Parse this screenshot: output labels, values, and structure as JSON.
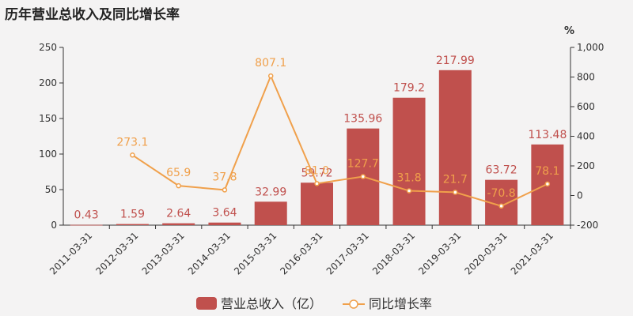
{
  "title": "历年营业总收入及同比增长率",
  "colors": {
    "bar": "#c0504d",
    "line": "#f0a04b",
    "background": "#f4f3f3"
  },
  "chart_data": {
    "type": "bar+line",
    "title": "历年营业总收入及同比增长率",
    "categories": [
      "2011-03-31",
      "2012-03-31",
      "2013-03-31",
      "2014-03-31",
      "2015-03-31",
      "2016-03-31",
      "2017-03-31",
      "2018-03-31",
      "2019-03-31",
      "2020-03-31",
      "2021-03-31"
    ],
    "series": [
      {
        "name": "营业总收入（亿）",
        "type": "bar",
        "axis": "left",
        "values": [
          0.43,
          1.59,
          2.64,
          3.64,
          32.99,
          59.72,
          135.96,
          179.2,
          217.99,
          63.72,
          113.48
        ],
        "labels": [
          "0.43",
          "1.59",
          "2.64",
          "3.64",
          "32.99",
          "59.72",
          "135.96",
          "179.2",
          "217.99",
          "63.72",
          "113.48"
        ]
      },
      {
        "name": "同比增长率",
        "type": "line",
        "axis": "right",
        "values": [
          null,
          273.1,
          65.9,
          37.8,
          807.1,
          81.0,
          127.7,
          31.8,
          21.7,
          -70.8,
          78.1
        ],
        "labels": [
          "",
          "273.1",
          "65.9",
          "37.8",
          "807.1",
          "81.0",
          "127.7",
          "31.8",
          "21.7",
          "-70.8",
          "78.1"
        ]
      }
    ],
    "y_left": {
      "min": 0,
      "max": 250,
      "ticks": [
        0,
        50,
        100,
        150,
        200,
        250
      ]
    },
    "y_right": {
      "min": -200,
      "max": 1000,
      "ticks": [
        "-200",
        "0",
        "200",
        "400",
        "600",
        "800",
        "1,000"
      ],
      "tick_values": [
        -200,
        0,
        200,
        400,
        600,
        800,
        1000
      ],
      "unit": "%"
    },
    "legend": {
      "position": "bottom"
    }
  }
}
